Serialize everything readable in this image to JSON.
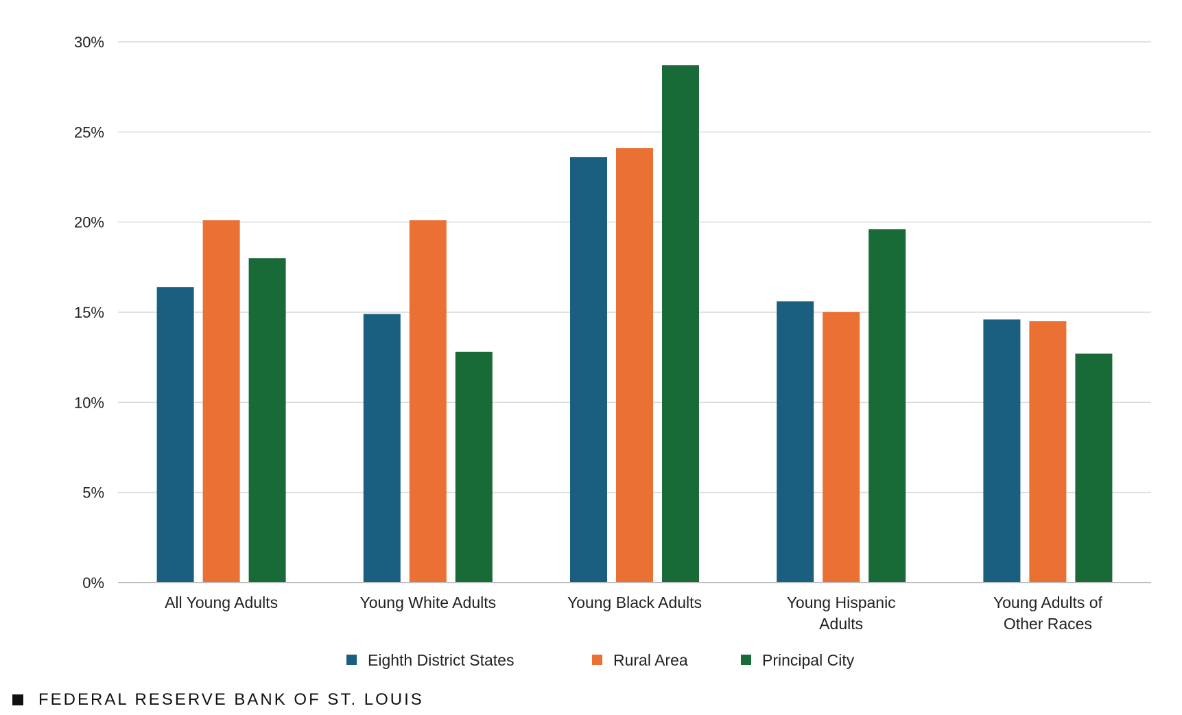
{
  "chart_data": {
    "type": "bar",
    "categories": [
      [
        "All Young Adults"
      ],
      [
        "Young White Adults"
      ],
      [
        "Young Black Adults"
      ],
      [
        "Young Hispanic",
        "Adults"
      ],
      [
        "Young Adults of",
        "Other Races"
      ]
    ],
    "series": [
      {
        "name": "Eighth District States",
        "color": "#1a5f80",
        "values": [
          16.4,
          14.9,
          23.6,
          15.6,
          14.6
        ]
      },
      {
        "name": "Rural Area",
        "color": "#ea7033",
        "values": [
          20.1,
          20.1,
          24.1,
          15.0,
          14.5
        ]
      },
      {
        "name": "Principal City",
        "color": "#186b37",
        "values": [
          18.0,
          12.8,
          28.7,
          19.6,
          12.7
        ]
      }
    ],
    "yticks": [
      "0%",
      "5%",
      "10%",
      "15%",
      "20%",
      "25%",
      "30%"
    ],
    "ylim": [
      0,
      30
    ],
    "grid": true,
    "legend": "bottom-center"
  },
  "footer": {
    "source": "FEDERAL RESERVE BANK OF ST. LOUIS"
  }
}
